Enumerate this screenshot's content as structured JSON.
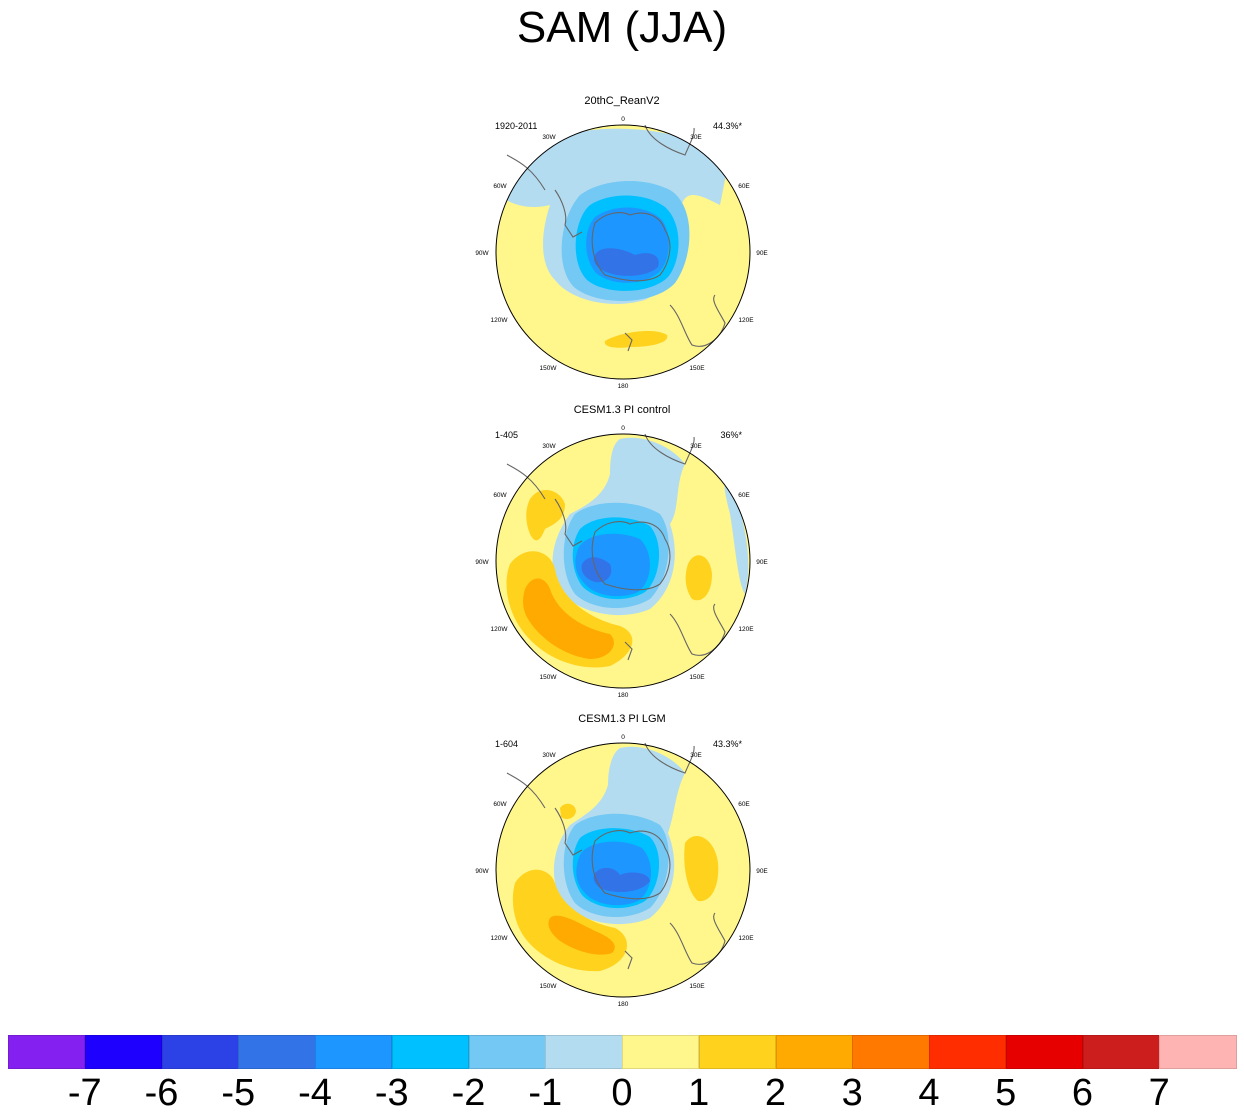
{
  "title": "SAM (JJA)",
  "colors": {
    "land_outline": "#666666",
    "map_border": "#000000"
  },
  "panels": [
    {
      "title": "20thC_ReanV2",
      "period": "1920-2011",
      "variance": "44.3%*"
    },
    {
      "title": "CESM1.3 PI control",
      "period": "1-405",
      "variance": "36%*"
    },
    {
      "title": "CESM1.3 PI LGM",
      "period": "1-604",
      "variance": "43.3%*"
    }
  ],
  "longitude_labels": [
    "0",
    "30E",
    "60E",
    "90E",
    "120E",
    "150E",
    "180",
    "150W",
    "120W",
    "90W",
    "60W",
    "30W"
  ],
  "colorbar": {
    "colors": [
      "#8420f0",
      "#1e00ff",
      "#2d42e6",
      "#3373e8",
      "#1e96ff",
      "#00c0ff",
      "#74c8f4",
      "#b4dcf0",
      "#fff68c",
      "#ffd21e",
      "#ffaa00",
      "#ff7800",
      "#ff2d00",
      "#e60000",
      "#cd1e1e",
      "#ffb4b4"
    ],
    "labels": [
      "-7",
      "-6",
      "-5",
      "-4",
      "-3",
      "-2",
      "-1",
      "0",
      "1",
      "2",
      "3",
      "4",
      "5",
      "6",
      "7"
    ]
  }
}
